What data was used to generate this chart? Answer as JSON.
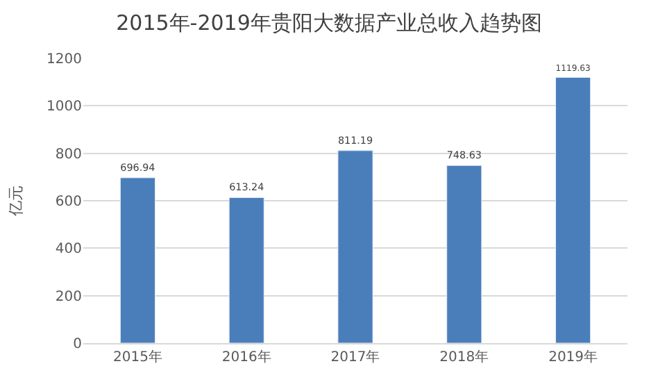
{
  "chart_data": {
    "type": "bar",
    "title": "2015年-2019年贵阳大数据产业总收入趋势图",
    "ylabel": "亿元",
    "categories": [
      "2015年",
      "2016年",
      "2017年",
      "2018年",
      "2019年"
    ],
    "values": [
      696.94,
      613.24,
      811.19,
      748.63,
      1119.63
    ],
    "color": "#4a7ebb",
    "ylim": [
      0,
      1200
    ],
    "yticks": [
      0,
      200,
      400,
      600,
      800,
      1000,
      1200
    ],
    "grid": "y",
    "data_labels": true
  }
}
